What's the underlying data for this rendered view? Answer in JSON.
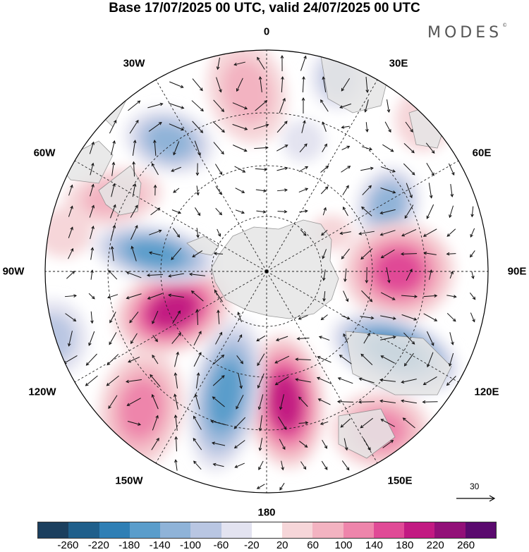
{
  "title": "Base 17/07/2025 00 UTC, valid 24/07/2025 00 UTC",
  "brand": {
    "text": "MODES",
    "mark": "©"
  },
  "lon_labels": [
    {
      "key": "lon-0",
      "text": "0"
    },
    {
      "key": "lon-30e",
      "text": "30E"
    },
    {
      "key": "lon-60e",
      "text": "60E"
    },
    {
      "key": "lon-90e",
      "text": "90E"
    },
    {
      "key": "lon-120e",
      "text": "120E"
    },
    {
      "key": "lon-150e",
      "text": "150E"
    },
    {
      "key": "lon-180",
      "text": "180"
    },
    {
      "key": "lon-150w",
      "text": "150W"
    },
    {
      "key": "lon-120w",
      "text": "120W"
    },
    {
      "key": "lon-90w",
      "text": "90W"
    },
    {
      "key": "lon-60w",
      "text": "60W"
    },
    {
      "key": "lon-30w",
      "text": "30W"
    }
  ],
  "reference_vector": {
    "label": "30"
  },
  "colorbar": {
    "colors": [
      "#1b3f5e",
      "#1f5f8b",
      "#2f7fb5",
      "#5a9dcb",
      "#8fb3d8",
      "#b9c6e2",
      "#e3e3f0",
      "#ffffff",
      "#f6d6d9",
      "#f3b3c1",
      "#ee85ab",
      "#e04a96",
      "#c21a82",
      "#921078",
      "#5a0a6e"
    ],
    "labels": [
      "-260",
      "-220",
      "-180",
      "-140",
      "-100",
      "-60",
      "-20",
      "20",
      "60",
      "100",
      "140",
      "180",
      "220",
      "260"
    ]
  },
  "colors": {
    "land": "#e6e6e6",
    "coast": "#888888",
    "grid": "#222222",
    "arrow": "#111111"
  }
}
